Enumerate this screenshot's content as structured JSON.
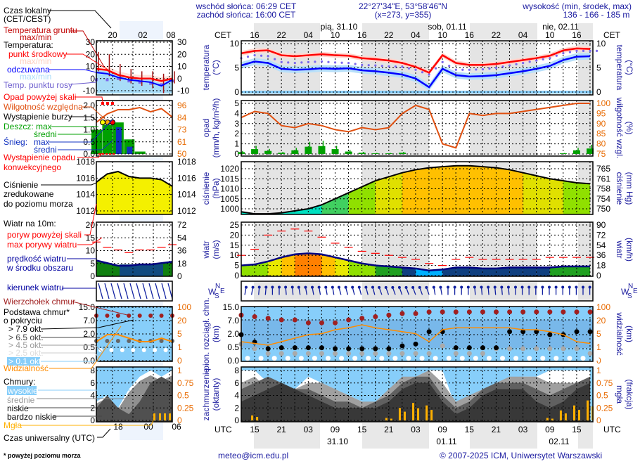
{
  "header": {
    "sunrise": "wschód słońca: 06:29 CET",
    "sunset": "zachód słońca: 16:00 CET",
    "coords": "22°27'34\"E, 53°58'46\"N",
    "grid": "(x=273,  y=355)",
    "elevation_label": "wysokość (min, środek, max)",
    "elevation_values": "136 - 166 - 185 m"
  },
  "footer": {
    "email": "meteo@icm.edu.pl",
    "copyright": "© 2007-2025 ICM, Uniwersytet Warszawski",
    "note": "* powyżej poziomu morza"
  },
  "legend": {
    "local_time": "Czas lokalny",
    "local_time_zone": "(CET/CEST)",
    "ground_temp": "Temperatura gruntu",
    "ground_temp_mm": "max/min",
    "temperature": "Temperatura:",
    "mid_point": "punkt środkowy",
    "mid_maxmin": "max/min",
    "feels_like": "odczuwana",
    "feels_maxmin": "max/min",
    "dew_point": "Temp. punktu rosy",
    "precip_over": "Opad powyżej skali",
    "humidity": "Wilgotność względna",
    "storm": "Wystąpienie burzy",
    "rain_max": "Deszcz: max",
    "rain_mean": "średni",
    "snow": "Śnieg:",
    "snow_max": "max",
    "snow_mean": "średni",
    "convective_1": "Wystąpienie opadu",
    "convective_2": "konwekcyjnego",
    "pressure_1": "Ciśnienie",
    "pressure_2": "zredukowane",
    "pressure_3": "do poziomu morza",
    "wind_10m": "Wiatr na 10m:",
    "gust_over": "poryw powyżej skali",
    "gust_max": "max porywy wiatru",
    "wind_speed_1": "prędkość wiatru",
    "wind_speed_2": "w środku obszaru",
    "wind_dir": "kierunek wiatru",
    "cloud_top": "Wierzchołek chmur",
    "cloud_base_1": "Podstawa chmur*",
    "cloud_base_2": "o pokryciu",
    "okt_79": "> 7.9 okt.",
    "okt_65": "> 6.5 okt.",
    "okt_45": "> 4.5 okt.",
    "okt_25": "> 2.5 okt.",
    "okt_01": "> 0.1 okt.",
    "visibility": "Widzialność",
    "clouds": "Chmury:",
    "high": "wysokie",
    "medium": "średnie",
    "low": "niskie",
    "very_low": "bardzo niskie",
    "fog": "Mgła",
    "utc_time": "Czas uniwersalny (UTC)",
    "top_ticks": [
      "20",
      "02",
      "08"
    ],
    "bottom_ticks": [
      "18",
      "00",
      "06"
    ],
    "axes": {
      "temp_left": [
        "30",
        "20",
        "10",
        "0",
        "-10"
      ],
      "temp_right": [
        "30",
        "20",
        "10",
        "0",
        "-10"
      ],
      "precip_left": [
        "2.0",
        "1.5",
        "1.0",
        "0.5",
        "0.0"
      ],
      "precip_right": [
        "96",
        "84",
        "73",
        "61",
        "50"
      ],
      "press_left": [
        "1018",
        "1016",
        "1014",
        "1012"
      ],
      "press_right": [
        "1018",
        "1016",
        "1014",
        "1012"
      ],
      "wind_left": [
        "20",
        "15",
        "10",
        "5",
        "0"
      ],
      "wind_right": [
        "72",
        "54",
        "36",
        "18",
        "0"
      ],
      "cloud_left": [
        "15.0",
        "7.0",
        "2.0",
        "0.5",
        "0.0"
      ],
      "cloud_right": [
        "100",
        "20",
        "5",
        "1",
        "0"
      ],
      "cover_left": [
        "8",
        "6",
        "4",
        "2",
        "0"
      ],
      "cover_right": [
        "1",
        "0.75",
        "0.5",
        "0.25",
        "0"
      ]
    },
    "example": {
      "temp_mean": [
        8,
        7,
        3,
        1,
        0,
        0,
        -2,
        0
      ],
      "temp_feels": [
        5,
        4,
        1,
        -1,
        -2,
        -3,
        -6,
        -1
      ],
      "dew_point": [
        -1,
        -1,
        0,
        -2,
        -3,
        -4,
        -5,
        -2
      ],
      "ground_max": [
        22,
        20,
        12,
        8,
        6,
        6,
        4,
        6
      ],
      "ground_min": [
        6,
        2,
        -2,
        -4,
        -6,
        -8,
        -12,
        -4
      ],
      "rain": [
        1.0,
        1.2,
        1.3,
        0.6,
        0.1,
        0,
        0,
        0
      ],
      "snow": [
        0,
        0,
        1.1,
        0.3,
        0,
        0,
        0,
        0
      ],
      "humidity": [
        80,
        88,
        92,
        92,
        94,
        90,
        93,
        85
      ],
      "pressure": [
        1015.5,
        1016.5,
        1016.8,
        1016.2,
        1016,
        1016,
        1015.8,
        1015
      ],
      "wind_mean": [
        6,
        5,
        4,
        4,
        4.5,
        4.5,
        5,
        5.5
      ],
      "wind_gust": [
        13,
        11,
        10,
        9,
        10,
        10,
        11,
        12
      ],
      "visibility": [
        3,
        5,
        5,
        4,
        3,
        3,
        4,
        3
      ],
      "cover_high": [
        3,
        4,
        2,
        5,
        7,
        8,
        7,
        8
      ],
      "cover_low": [
        2,
        4,
        2,
        1,
        3,
        6,
        7,
        6
      ]
    }
  },
  "main": {
    "cet_label": "CET",
    "utc_label": "UTC",
    "cet_ticks": [
      "16",
      "22",
      "04",
      "10",
      "16",
      "22",
      "04",
      "10",
      "16",
      "22",
      "04",
      "10",
      "16"
    ],
    "utc_ticks": [
      "15",
      "21",
      "03",
      "09",
      "15",
      "21",
      "03",
      "09",
      "15",
      "21",
      "03",
      "09",
      "15"
    ],
    "top_dates": [
      "pią, 31.10",
      "sob, 01.11",
      "nie, 02.11"
    ],
    "bottom_dates": [
      "31.10",
      "01.11",
      "02.11"
    ],
    "compass": {
      "n": "N",
      "s": "S",
      "w": "W",
      "e": "E"
    },
    "titles": {
      "temp_l1": "temperatura",
      "temp_l2": "(°C)",
      "precip_l1": "opad",
      "precip_l2": "(mm/h, kg/m²/h)",
      "press_l1": "ciśnienie",
      "press_l2": "(hPa)",
      "wind_l1": "wiatr",
      "wind_l2": "(m/s)",
      "cloud_l1": "pion. rozciągł. chm.",
      "cloud_l2": "(km)",
      "cover_l1": "zachmurzenie",
      "cover_l2": "(oktanty)",
      "temp_r1": "(°C)",
      "temp_r2": "temperatura",
      "hum_r1": "(%)",
      "hum_r2": "wilgotność wzgl.",
      "mmhg_r1": "(mm Hg)",
      "mmhg_r2": "ciśnienie",
      "kmh_r1": "(km/h)",
      "kmh_r2": "wiatr",
      "vis_r1": "(km)",
      "vis_r2": "widzialność",
      "fog_r1": "(frakcja)",
      "fog_r2": "mgła"
    },
    "axes": {
      "temp_left": [
        "10",
        "5",
        "0"
      ],
      "temp_right": [
        "10",
        "5",
        "0"
      ],
      "precip_left": [
        "5",
        "4",
        "3",
        "2",
        "1",
        "0"
      ],
      "hum_right": [
        "100",
        "95",
        "90",
        "85",
        "80",
        "75"
      ],
      "press_left": [
        "1020",
        "1015",
        "1010",
        "1005",
        "1000"
      ],
      "mmhg_right": [
        "765",
        "761",
        "758",
        "754",
        "750"
      ],
      "wind_left": [
        "25",
        "20",
        "15",
        "10",
        "5",
        "0"
      ],
      "kmh_right": [
        "90",
        "72",
        "54",
        "36",
        "18",
        "0"
      ],
      "cloud_left": [
        "15.0",
        "7.0",
        "2.0",
        "0.5",
        "0.0"
      ],
      "vis_right": [
        "100",
        "20",
        "5",
        "1",
        "0"
      ],
      "cover_left": [
        "8",
        "6",
        "4",
        "2",
        "0"
      ],
      "fog_right": [
        "1",
        "0.75",
        "0.5",
        "0.25",
        "0"
      ]
    }
  },
  "colors": {
    "temp": "#ff0000",
    "feels": "#0000ff",
    "dew": "#7b68ee",
    "ground": "#a01010",
    "humidity": "#e05010",
    "rain": "#00a000",
    "snow": "#1030c0",
    "gust": "#ff0000",
    "wind": "#000080",
    "visibility": "#ff8c00",
    "cloud_top": "#a02020",
    "fog": "#ffb000",
    "sky": "#87cefa",
    "night": "#e4e4e4"
  },
  "chart_data": {
    "type": "line",
    "x_utc": [
      "30.10 12",
      "30.10 15",
      "30.10 18",
      "30.10 21",
      "31.10 00",
      "31.10 03",
      "31.10 06",
      "31.10 09",
      "31.10 12",
      "31.10 15",
      "31.10 18",
      "31.10 21",
      "01.11 00",
      "01.11 03",
      "01.11 06",
      "01.11 09",
      "01.11 12",
      "01.11 15",
      "01.11 18",
      "01.11 21",
      "02.11 00",
      "02.11 03",
      "02.11 06",
      "02.11 09",
      "02.11 12",
      "02.11 15",
      "02.11 18"
    ],
    "temperature_c": [
      8.0,
      8.5,
      8.6,
      7.6,
      7.4,
      7.6,
      7.8,
      7.6,
      7.5,
      7.0,
      6.8,
      6.5,
      6.0,
      5.2,
      4.0,
      7.6,
      6.0,
      5.6,
      5.6,
      5.8,
      6.2,
      6.6,
      7.0,
      7.5,
      8.6,
      9.0,
      8.9
    ],
    "feels_like_c": [
      5.5,
      6.3,
      6.0,
      4.8,
      4.6,
      4.7,
      4.9,
      4.8,
      4.9,
      4.5,
      4.3,
      4.0,
      3.6,
      2.8,
      1.0,
      4.8,
      3.5,
      3.2,
      3.3,
      3.5,
      3.9,
      4.3,
      4.8,
      5.4,
      6.6,
      7.3,
      7.4
    ],
    "dew_point_c": [
      7.0,
      7.6,
      7.4,
      6.2,
      6.0,
      6.2,
      6.3,
      6.1,
      6.0,
      5.6,
      5.5,
      5.3,
      5.2,
      4.6,
      3.6,
      6.2,
      4.6,
      4.6,
      4.7,
      5.0,
      5.5,
      6.0,
      6.5,
      7.0,
      8.0,
      8.5,
      8.5
    ],
    "humidity_pct": [
      93,
      96,
      95,
      89,
      88,
      90,
      89,
      87,
      86,
      88,
      87,
      88,
      95,
      99,
      97,
      80,
      78,
      95,
      94,
      95,
      95,
      96,
      97,
      98,
      99,
      100,
      100
    ],
    "rain_mm_h": [
      0.3,
      0.8,
      0.5,
      0.2,
      0.6,
      1.2,
      1.3,
      0.8,
      0.4,
      0.2,
      0.1,
      0.1,
      0.2,
      0,
      0,
      0,
      0,
      0,
      0,
      0,
      0,
      0,
      0,
      0,
      0.1,
      0.6,
      0.9
    ],
    "pressure_hpa": [
      998.5,
      997.5,
      997.5,
      998,
      999,
      1000,
      1002,
      1005,
      1008,
      1011,
      1014,
      1016,
      1018,
      1019.5,
      1020.5,
      1021,
      1021.5,
      1021.5,
      1021,
      1020.5,
      1019.5,
      1018,
      1016.5,
      1015,
      1014,
      1013,
      1012.5
    ],
    "wind_ms": [
      5,
      5.5,
      7,
      9,
      10.5,
      11,
      10.5,
      9,
      7.5,
      6,
      5,
      4.5,
      4,
      3.5,
      2.5,
      3,
      4,
      4,
      3.5,
      3.5,
      4,
      4,
      4,
      4,
      4.5,
      4.5,
      4.5
    ],
    "gust_ms": [
      10,
      13,
      20,
      22,
      23,
      22,
      19,
      16,
      14,
      12,
      11,
      10,
      9,
      8,
      6,
      5,
      8,
      9,
      8,
      8,
      8,
      8,
      8,
      9,
      9,
      9,
      9
    ],
    "wind_from_deg": [
      190,
      185,
      180,
      175,
      170,
      170,
      170,
      165,
      165,
      165,
      160,
      160,
      160,
      160,
      170,
      180,
      180,
      175,
      175,
      175,
      180,
      180,
      180,
      180,
      180,
      180,
      180
    ],
    "cloud_top_km": [
      10,
      9,
      8,
      7,
      7,
      6,
      6,
      6,
      7,
      8,
      9,
      10,
      11,
      11,
      12,
      12,
      12,
      12,
      12,
      12,
      12,
      12,
      12,
      12,
      12,
      12,
      12
    ],
    "cloud_base_79_km": [
      2,
      1.2,
      0.5,
      0.6,
      0.6,
      0.6,
      0.6,
      0.5,
      0.5,
      0.5,
      0.5,
      0.5,
      0.8,
      1,
      3,
      3,
      0.6,
      0.6,
      0.6,
      0.6,
      3,
      3,
      3,
      2,
      2,
      3,
      3
    ],
    "cloud_base_45_km": [
      1,
      0.5,
      0.3,
      0.3,
      0.3,
      0.3,
      0.3,
      0.3,
      0.3,
      0.3,
      0.3,
      0.3,
      0.3,
      0.3,
      0.3,
      0.8,
      0.3,
      0.3,
      0.3,
      0.5,
      0.5,
      0.5,
      0.5,
      0.5,
      0.5,
      0.5,
      0.3
    ],
    "visibility_km": [
      3,
      2.5,
      2,
      3,
      4,
      5,
      6,
      10,
      12,
      15,
      12,
      10,
      8,
      6,
      3,
      10,
      12,
      12,
      12,
      12,
      12,
      10,
      10,
      8,
      5,
      3,
      2.5
    ],
    "cover_high_okt": [
      8,
      8,
      6,
      2,
      5,
      7,
      6,
      5,
      4,
      3,
      2,
      4,
      6,
      7,
      8,
      8,
      2,
      3,
      4,
      5,
      6,
      7,
      7,
      8,
      8,
      8,
      8
    ],
    "cover_medium_okt": [
      6,
      7,
      5,
      4,
      5,
      6,
      6,
      5,
      4,
      3,
      3,
      5,
      7,
      7,
      8,
      6,
      3,
      4,
      5,
      6,
      7,
      7,
      7,
      6,
      6,
      6,
      7
    ],
    "cover_low_okt": [
      5,
      6,
      7,
      6,
      5,
      5,
      4,
      3,
      3,
      2,
      3,
      4,
      6,
      7,
      7,
      4,
      2,
      3,
      5,
      6,
      6,
      6,
      5,
      4,
      5,
      6,
      7
    ],
    "cover_very_low_okt": [
      3,
      4,
      5,
      6,
      5,
      4,
      3,
      2,
      2,
      2,
      2,
      3,
      5,
      6,
      6,
      3,
      1,
      2,
      4,
      5,
      5,
      5,
      3,
      2,
      3,
      5,
      6
    ],
    "fog_fraction": [
      0,
      0.1,
      0,
      0,
      0,
      0,
      0,
      0,
      0,
      0,
      0,
      0.05,
      0.25,
      0.35,
      0.3,
      0,
      0,
      0,
      0,
      0,
      0,
      0,
      0,
      0.05,
      0.2,
      0.3,
      0.4
    ],
    "ylim": {
      "temp": [
        0,
        10
      ],
      "precip": [
        0,
        5
      ],
      "humidity": [
        75,
        100
      ],
      "pressure": [
        995,
        1022
      ],
      "wind": [
        0,
        25
      ],
      "cover": [
        0,
        8
      ],
      "fog": [
        0,
        1
      ]
    }
  }
}
